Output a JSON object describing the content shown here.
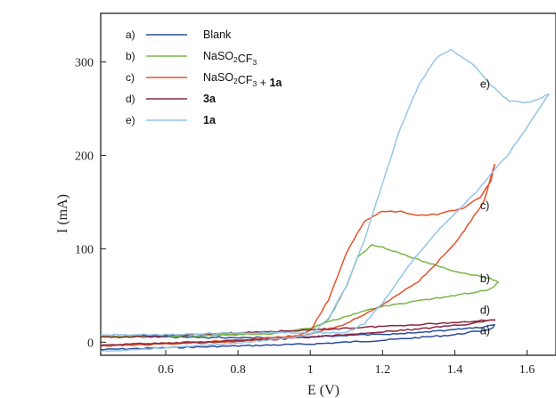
{
  "chart_data": {
    "type": "line",
    "xlabel": "E (V)",
    "ylabel": "I (mA)",
    "xlim": [
      0.42,
      1.68
    ],
    "ylim": [
      -14,
      352
    ],
    "x_ticks": [
      0.6,
      0.8,
      1.0,
      1.2,
      1.4,
      1.6
    ],
    "x_tick_labels": [
      "0.6",
      "0.8",
      "1",
      "1.2",
      "1.4",
      "1.6"
    ],
    "y_ticks": [
      0,
      100,
      200,
      300
    ],
    "y_tick_labels": [
      "0",
      "100",
      "200",
      "300"
    ],
    "legend_placement": "top-left",
    "legend": [
      {
        "key": "a)",
        "parts": [
          {
            "t": "Blank",
            "bold": false
          }
        ]
      },
      {
        "key": "b)",
        "parts": [
          {
            "t": "NaSO",
            "bold": false
          },
          {
            "t": "2",
            "sub": true
          },
          {
            "t": "CF",
            "bold": false
          },
          {
            "t": "3",
            "sub": true
          }
        ]
      },
      {
        "key": "c)",
        "parts": [
          {
            "t": "NaSO",
            "bold": false
          },
          {
            "t": "2",
            "sub": true
          },
          {
            "t": "CF",
            "bold": false
          },
          {
            "t": "3",
            "sub": true
          },
          {
            "t": " + ",
            "bold": false
          },
          {
            "t": "1a",
            "bold": true
          }
        ]
      },
      {
        "key": "d)",
        "parts": [
          {
            "t": "3a",
            "bold": true
          }
        ]
      },
      {
        "key": "e)",
        "parts": [
          {
            "t": "1a",
            "bold": true
          }
        ]
      }
    ],
    "curve_labels": [
      {
        "text": "e)",
        "x": 1.65,
        "y": 276
      },
      {
        "text": "c)",
        "x": 1.65,
        "y": 146
      },
      {
        "text": "b)",
        "x": 1.65,
        "y": 68
      },
      {
        "text": "d)",
        "x": 1.65,
        "y": 34
      },
      {
        "text": "a)",
        "x": 1.65,
        "y": 12
      }
    ],
    "series": [
      {
        "key": "a)",
        "color": "#2b4d9c",
        "forward": [
          [
            0.42,
            -8
          ],
          [
            0.6,
            -6
          ],
          [
            0.8,
            -4
          ],
          [
            1.0,
            -2
          ],
          [
            1.2,
            2
          ],
          [
            1.4,
            8
          ],
          [
            1.5,
            14
          ],
          [
            1.51,
            18
          ]
        ],
        "backward": [
          [
            1.51,
            18
          ],
          [
            1.45,
            15
          ],
          [
            1.3,
            10
          ],
          [
            1.1,
            7
          ],
          [
            0.9,
            5
          ],
          [
            0.7,
            5
          ],
          [
            0.5,
            6
          ],
          [
            0.42,
            6
          ]
        ]
      },
      {
        "key": "b)",
        "color": "#7ab648",
        "forward": [
          [
            0.42,
            6
          ],
          [
            0.7,
            8
          ],
          [
            0.9,
            10
          ],
          [
            1.0,
            14
          ],
          [
            1.05,
            24
          ],
          [
            1.1,
            60
          ],
          [
            1.13,
            90
          ],
          [
            1.17,
            104
          ],
          [
            1.2,
            102
          ],
          [
            1.3,
            88
          ],
          [
            1.4,
            76
          ],
          [
            1.5,
            68
          ],
          [
            1.52,
            64
          ]
        ],
        "backward": [
          [
            1.52,
            64
          ],
          [
            1.5,
            57
          ],
          [
            1.4,
            50
          ],
          [
            1.3,
            44
          ],
          [
            1.2,
            38
          ],
          [
            1.1,
            28
          ],
          [
            1.0,
            15
          ],
          [
            0.9,
            9
          ],
          [
            0.7,
            7
          ],
          [
            0.42,
            6
          ]
        ]
      },
      {
        "key": "c)",
        "color": "#e4532d",
        "forward": [
          [
            0.42,
            -4
          ],
          [
            0.6,
            -2
          ],
          [
            0.8,
            1
          ],
          [
            0.95,
            5
          ],
          [
            1.0,
            12
          ],
          [
            1.05,
            45
          ],
          [
            1.1,
            95
          ],
          [
            1.15,
            130
          ],
          [
            1.2,
            140
          ],
          [
            1.25,
            140
          ],
          [
            1.3,
            136
          ],
          [
            1.35,
            137
          ],
          [
            1.42,
            143
          ],
          [
            1.47,
            155
          ],
          [
            1.5,
            172
          ],
          [
            1.51,
            190
          ]
        ],
        "backward": [
          [
            1.51,
            190
          ],
          [
            1.48,
            150
          ],
          [
            1.4,
            105
          ],
          [
            1.3,
            65
          ],
          [
            1.2,
            40
          ],
          [
            1.1,
            20
          ],
          [
            1.0,
            8
          ],
          [
            0.8,
            2
          ],
          [
            0.6,
            -1
          ],
          [
            0.42,
            -4
          ]
        ]
      },
      {
        "key": "d)",
        "color": "#8a2a3f",
        "forward": [
          [
            0.42,
            5
          ],
          [
            0.6,
            7
          ],
          [
            0.8,
            10
          ],
          [
            1.0,
            13
          ],
          [
            1.2,
            17
          ],
          [
            1.4,
            21
          ],
          [
            1.5,
            24
          ],
          [
            1.51,
            24
          ]
        ],
        "backward": [
          [
            1.51,
            24
          ],
          [
            1.45,
            20
          ],
          [
            1.3,
            14
          ],
          [
            1.1,
            8
          ],
          [
            0.9,
            3
          ],
          [
            0.7,
            0
          ],
          [
            0.5,
            -2
          ],
          [
            0.42,
            -3
          ]
        ]
      },
      {
        "key": "e)",
        "color": "#94c6ea",
        "forward": [
          [
            0.42,
            -10
          ],
          [
            0.6,
            -6
          ],
          [
            0.8,
            -1
          ],
          [
            0.95,
            5
          ],
          [
            1.0,
            8
          ],
          [
            1.05,
            25
          ],
          [
            1.1,
            60
          ],
          [
            1.15,
            110
          ],
          [
            1.2,
            170
          ],
          [
            1.25,
            230
          ],
          [
            1.3,
            275
          ],
          [
            1.35,
            305
          ],
          [
            1.39,
            313
          ],
          [
            1.45,
            298
          ],
          [
            1.5,
            275
          ],
          [
            1.55,
            258
          ],
          [
            1.6,
            256
          ],
          [
            1.66,
            265
          ]
        ],
        "backward": [
          [
            1.66,
            265
          ],
          [
            1.6,
            230
          ],
          [
            1.55,
            202
          ],
          [
            1.5,
            180
          ],
          [
            1.45,
            157
          ],
          [
            1.4,
            138
          ],
          [
            1.35,
            118
          ],
          [
            1.3,
            95
          ],
          [
            1.25,
            70
          ],
          [
            1.2,
            42
          ],
          [
            1.15,
            20
          ],
          [
            1.1,
            10
          ],
          [
            1.0,
            10
          ],
          [
            0.8,
            10
          ],
          [
            0.6,
            8
          ],
          [
            0.42,
            8
          ]
        ]
      }
    ]
  }
}
